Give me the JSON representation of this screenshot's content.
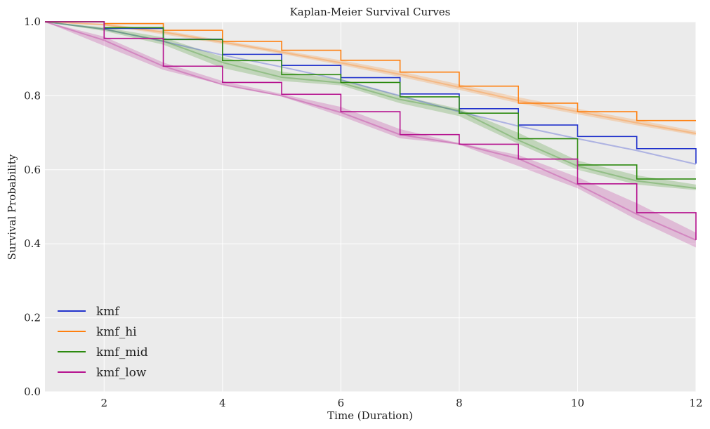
{
  "chart_data": {
    "type": "line",
    "title": "Kaplan-Meier Survival Curves",
    "xlabel": "Time (Duration)",
    "ylabel": "Survival Probability",
    "xlim": [
      1,
      12
    ],
    "ylim": [
      0,
      1
    ],
    "xticks": [
      2,
      4,
      6,
      8,
      10,
      12
    ],
    "yticks": [
      0.0,
      0.2,
      0.4,
      0.6,
      0.8,
      1.0
    ],
    "xtick_labels": [
      "2",
      "4",
      "6",
      "8",
      "10",
      "12"
    ],
    "ytick_labels": [
      "0.0",
      "0.2",
      "0.4",
      "0.6",
      "0.8",
      "1.0"
    ],
    "grid": true,
    "background": "#ebebeb",
    "legend_position": "bottom-left",
    "series": [
      {
        "name": "kmf",
        "color": "#2233cc",
        "step_x": [
          1,
          2,
          3,
          4,
          5,
          6,
          7,
          8,
          9,
          10,
          11,
          12
        ],
        "step_y": [
          1.0,
          0.982,
          0.953,
          0.912,
          0.882,
          0.849,
          0.805,
          0.765,
          0.721,
          0.69,
          0.657,
          0.617
        ],
        "smooth_x": [
          1,
          2,
          3,
          4,
          5,
          6,
          7,
          8,
          9,
          10,
          11,
          12
        ],
        "smooth_y": [
          1.0,
          0.98,
          0.947,
          0.91,
          0.878,
          0.843,
          0.8,
          0.757,
          0.718,
          0.684,
          0.652,
          0.615
        ],
        "band_lower": [],
        "band_upper": []
      },
      {
        "name": "kmf_hi",
        "color": "#ff7f0e",
        "step_x": [
          1,
          2,
          3,
          4,
          5,
          6,
          7,
          8,
          9,
          10,
          11,
          12
        ],
        "step_y": [
          1.0,
          0.995,
          0.977,
          0.947,
          0.923,
          0.896,
          0.864,
          0.826,
          0.78,
          0.757,
          0.733,
          0.733
        ],
        "smooth_x": [
          1,
          2,
          3,
          4,
          5,
          6,
          7,
          8,
          9,
          10,
          11,
          12
        ],
        "smooth_y": [
          1.0,
          0.992,
          0.972,
          0.945,
          0.918,
          0.889,
          0.858,
          0.823,
          0.787,
          0.757,
          0.727,
          0.698
        ],
        "band_lower": [
          1.0,
          0.99,
          0.966,
          0.94,
          0.913,
          0.883,
          0.851,
          0.816,
          0.78,
          0.75,
          0.72,
          0.693
        ],
        "band_upper": [
          1.0,
          0.995,
          0.977,
          0.95,
          0.923,
          0.896,
          0.866,
          0.831,
          0.796,
          0.765,
          0.735,
          0.705
        ]
      },
      {
        "name": "kmf_mid",
        "color": "#2c8a0f",
        "step_x": [
          1,
          2,
          3,
          4,
          5,
          6,
          7,
          8,
          9,
          10,
          11,
          12
        ],
        "step_y": [
          1.0,
          0.984,
          0.952,
          0.895,
          0.857,
          0.836,
          0.797,
          0.753,
          0.684,
          0.613,
          0.575,
          0.575
        ],
        "smooth_x": [
          1,
          2,
          3,
          4,
          5,
          6,
          7,
          8,
          9,
          10,
          11,
          12
        ],
        "smooth_y": [
          1.0,
          0.98,
          0.948,
          0.89,
          0.85,
          0.835,
          0.79,
          0.76,
          0.68,
          0.61,
          0.57,
          0.55
        ],
        "band_lower": [
          1.0,
          0.975,
          0.938,
          0.875,
          0.84,
          0.828,
          0.78,
          0.745,
          0.67,
          0.6,
          0.56,
          0.545
        ],
        "band_upper": [
          1.0,
          0.985,
          0.958,
          0.905,
          0.865,
          0.845,
          0.8,
          0.765,
          0.7,
          0.625,
          0.585,
          0.56
        ]
      },
      {
        "name": "kmf_low",
        "color": "#b5118e",
        "step_x": [
          1,
          2,
          3,
          4,
          5,
          6,
          7,
          8,
          9,
          10,
          11,
          12
        ],
        "step_y": [
          1.0,
          0.955,
          0.88,
          0.836,
          0.804,
          0.757,
          0.695,
          0.669,
          0.629,
          0.562,
          0.484,
          0.41
        ],
        "smooth_x": [
          1,
          2,
          3,
          4,
          5,
          6,
          7,
          8,
          9,
          10,
          11,
          12
        ],
        "smooth_y": [
          1.0,
          0.95,
          0.88,
          0.83,
          0.8,
          0.755,
          0.695,
          0.67,
          0.63,
          0.56,
          0.48,
          0.41
        ],
        "band_lower": [
          1.0,
          0.935,
          0.87,
          0.83,
          0.798,
          0.745,
          0.685,
          0.668,
          0.61,
          0.55,
          0.465,
          0.39
        ],
        "band_upper": [
          1.0,
          0.96,
          0.89,
          0.84,
          0.805,
          0.77,
          0.71,
          0.672,
          0.64,
          0.58,
          0.51,
          0.43
        ]
      }
    ]
  }
}
